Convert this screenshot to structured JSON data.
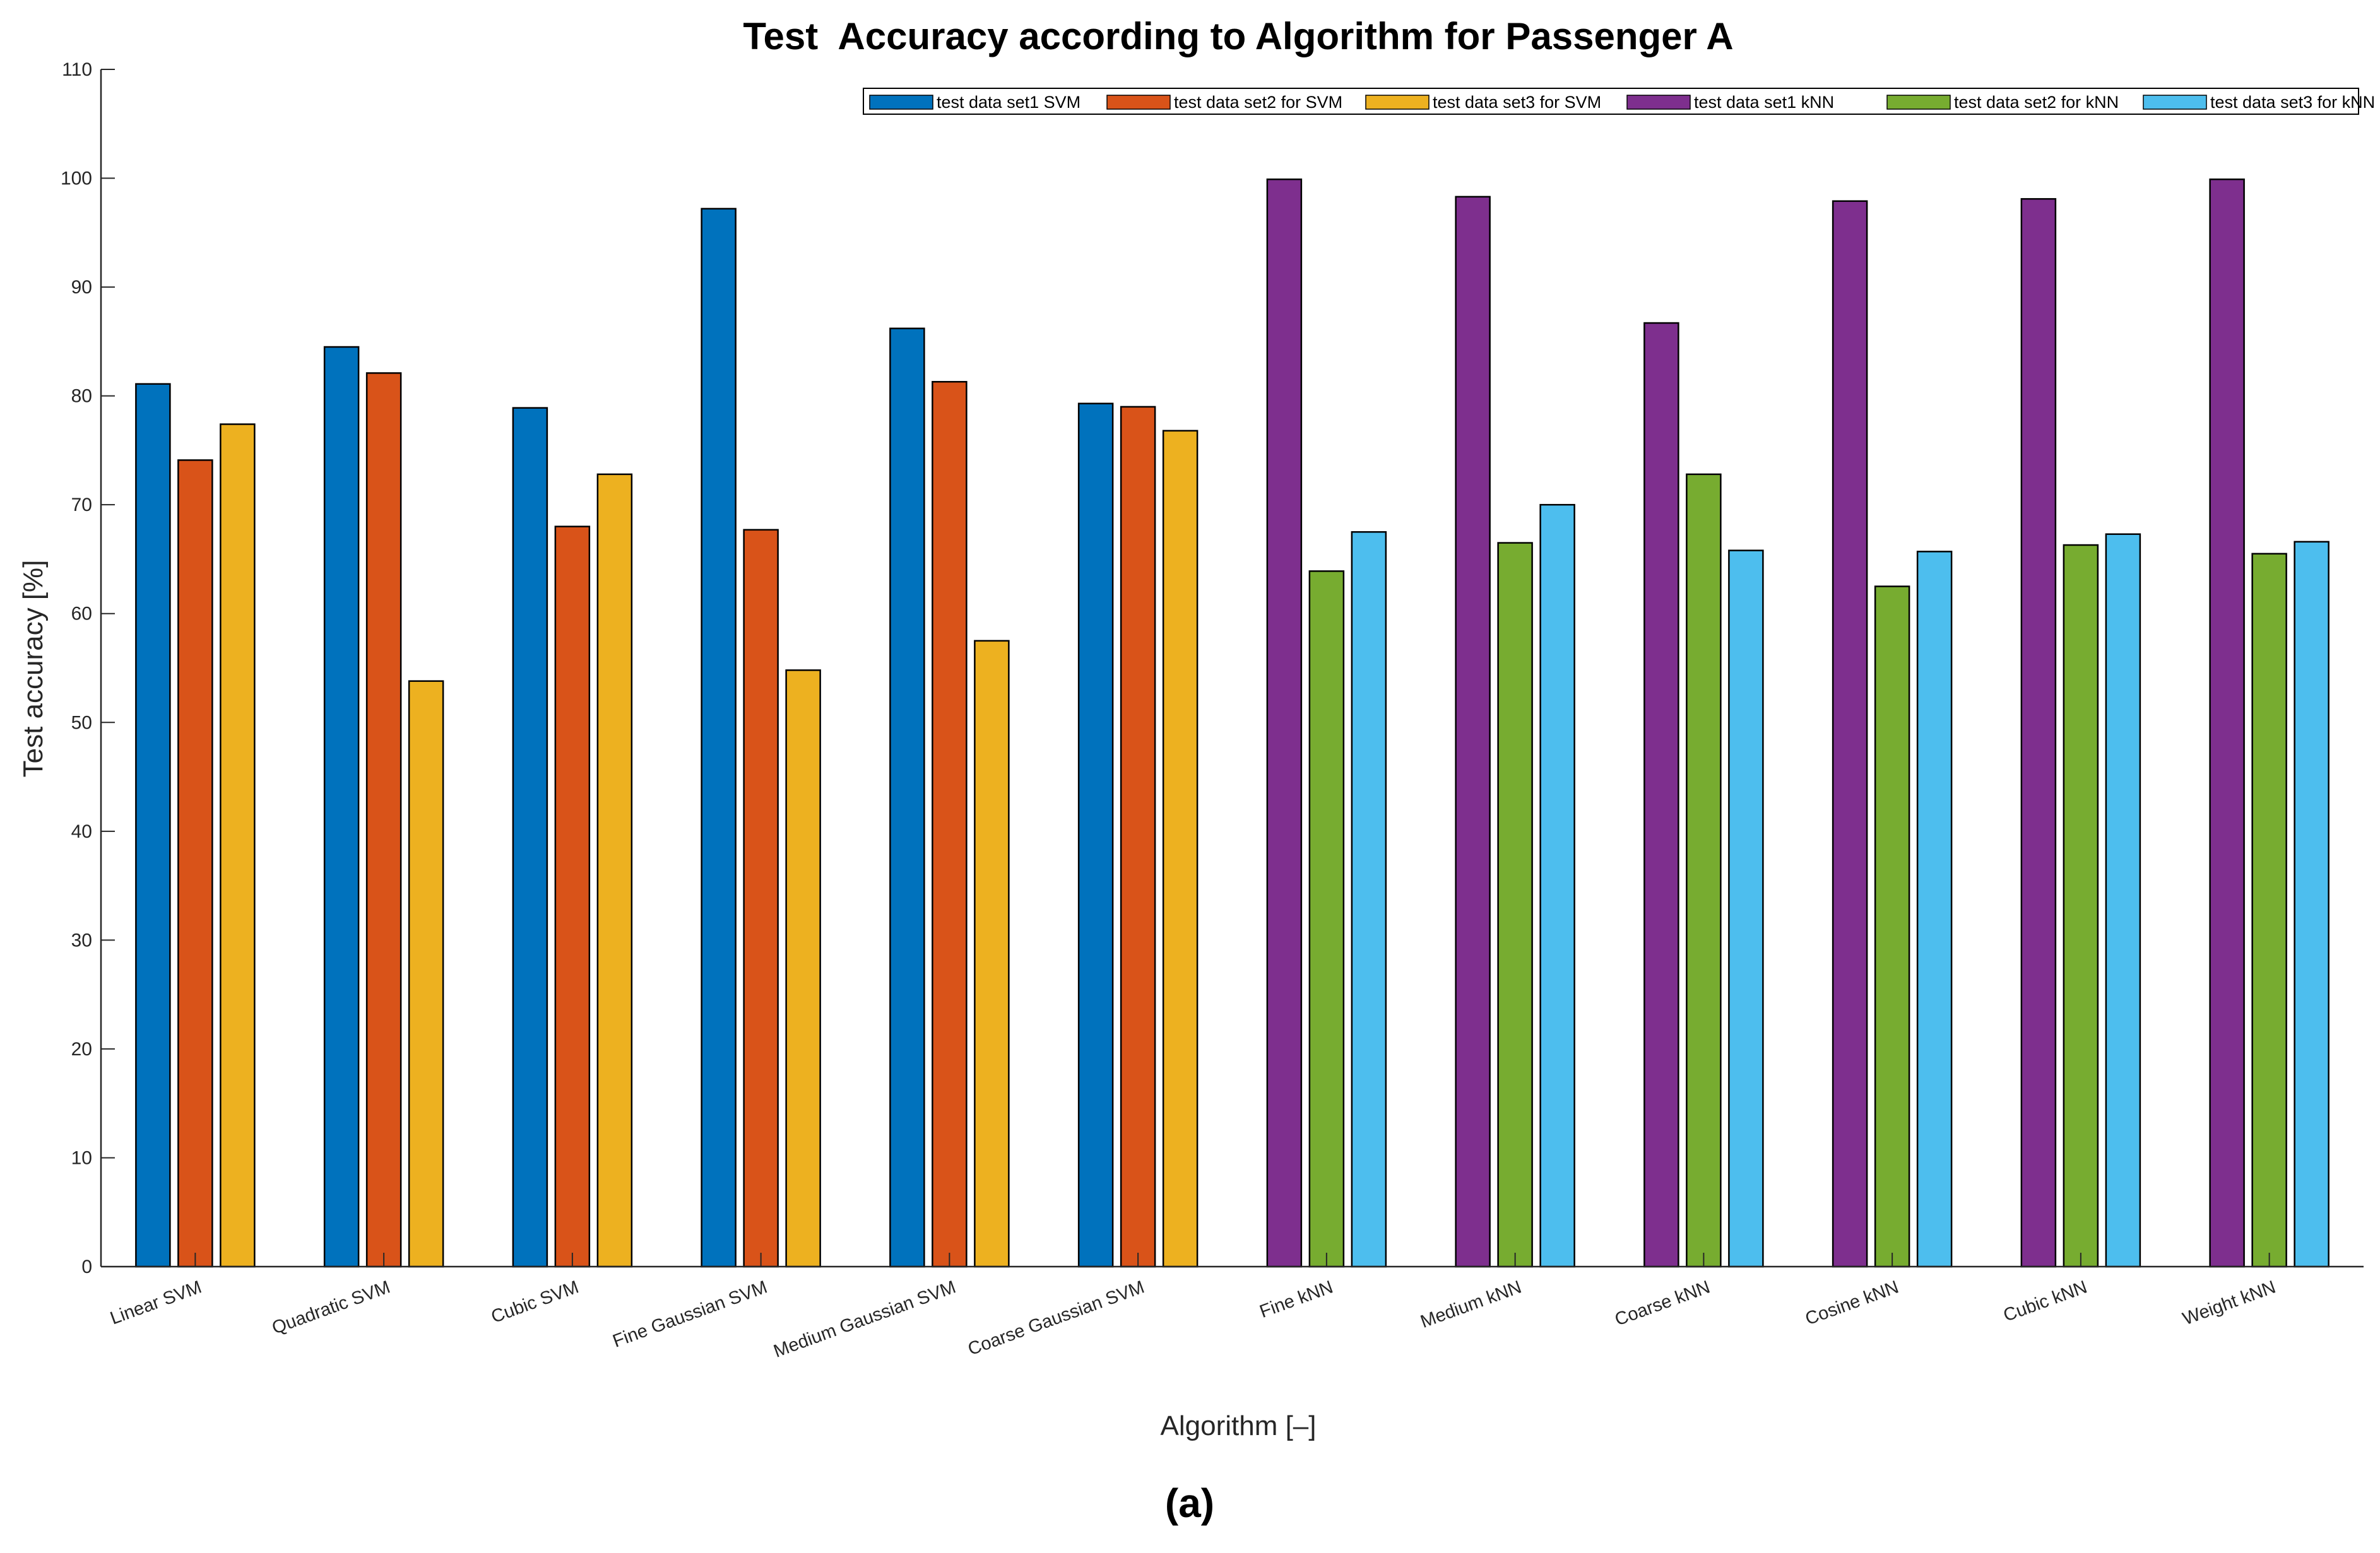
{
  "chart_data": {
    "type": "bar",
    "title": "Test  Accuracy according to Algorithm for Passenger A",
    "xlabel": "Algorithm [–]",
    "ylabel": "Test accuracy [%]",
    "ylim": [
      0,
      110
    ],
    "yticks": [
      0,
      10,
      20,
      30,
      40,
      50,
      60,
      70,
      80,
      90,
      100,
      110
    ],
    "grid": false,
    "legend_position": "top-right",
    "categories": [
      "Linear SVM",
      "Quadratic SVM",
      "Cubic SVM",
      "Fine Gaussian SVM",
      "Medium Gaussian SVM",
      "Coarse Gaussian SVM",
      "Fine kNN",
      "Medium kNN",
      "Coarse kNN",
      "Cosine kNN",
      "Cubic kNN",
      "Weight kNN"
    ],
    "series": [
      {
        "name": "test data set1 SVM",
        "color": "#0072BD",
        "values": [
          81.1,
          84.5,
          78.9,
          97.2,
          86.2,
          79.3,
          null,
          null,
          null,
          null,
          null,
          null
        ]
      },
      {
        "name": "test data set2 for SVM",
        "color": "#D95319",
        "values": [
          74.1,
          82.1,
          68.0,
          67.7,
          81.3,
          79.0,
          null,
          null,
          null,
          null,
          null,
          null
        ]
      },
      {
        "name": "test data set3 for SVM",
        "color": "#EDB120",
        "values": [
          77.4,
          53.8,
          72.8,
          54.8,
          57.5,
          76.8,
          null,
          null,
          null,
          null,
          null,
          null
        ]
      },
      {
        "name": "test data set1 kNN",
        "color": "#7E2F8E",
        "values": [
          null,
          null,
          null,
          null,
          null,
          null,
          99.9,
          98.3,
          86.7,
          97.9,
          98.1,
          99.9
        ]
      },
      {
        "name": "test data set2 for kNN",
        "color": "#77AC30",
        "values": [
          null,
          null,
          null,
          null,
          null,
          null,
          63.9,
          66.5,
          72.8,
          62.5,
          66.3,
          65.5
        ]
      },
      {
        "name": "test data set3 for kNN",
        "color": "#4DBEEE",
        "values": [
          null,
          null,
          null,
          null,
          null,
          null,
          67.5,
          70.0,
          65.8,
          65.7,
          67.3,
          66.6
        ]
      }
    ]
  },
  "caption": "(a)"
}
